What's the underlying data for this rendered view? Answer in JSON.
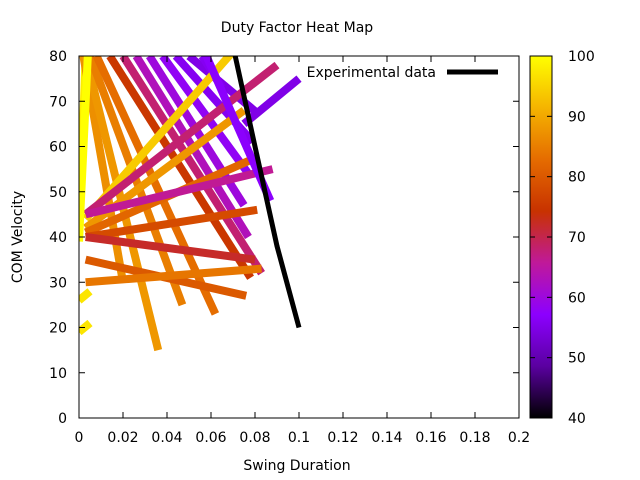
{
  "chart_data": {
    "type": "heatmap",
    "title": "Duty Factor Heat Map",
    "xlabel": "Swing Duration",
    "ylabel": "COM Velocity",
    "xlim": [
      0,
      0.2
    ],
    "ylim": [
      0,
      80
    ],
    "xticks": [
      0,
      0.02,
      0.04,
      0.06,
      0.08,
      0.1,
      0.12,
      0.14,
      0.16,
      0.18,
      0.2
    ],
    "xtick_labels": [
      "0",
      "0.02",
      "0.04",
      "0.06",
      "0.08",
      "0.1",
      "0.12",
      "0.14",
      "0.16",
      "0.18",
      "0.2"
    ],
    "yticks": [
      0,
      10,
      20,
      30,
      40,
      50,
      60,
      70,
      80
    ],
    "ytick_labels": [
      "0",
      "10",
      "20",
      "30",
      "40",
      "50",
      "60",
      "70",
      "80"
    ],
    "colorbar": {
      "range": [
        40,
        100
      ],
      "ticks": [
        40,
        50,
        60,
        70,
        80,
        90,
        100
      ],
      "tick_labels": [
        "40",
        "50",
        "60",
        "70",
        "80",
        "90",
        "100"
      ],
      "palette": [
        "#000000",
        "#5a00a0",
        "#8c00ff",
        "#c0199a",
        "#c83200",
        "#e56c00",
        "#f5b400",
        "#ffff00"
      ]
    },
    "legend": {
      "position": "top-right",
      "entries": [
        "Experimental data"
      ]
    },
    "series": [
      {
        "name": "Experimental data",
        "type": "line",
        "color": "#000000",
        "x": [
          0.071,
          0.08,
          0.09,
          0.1
        ],
        "y": [
          80,
          60,
          38,
          20
        ]
      }
    ],
    "heatmap_bands": [
      {
        "x": [
          0,
          0.003
        ],
        "y": [
          40,
          80
        ],
        "value": 98
      },
      {
        "x": [
          0.002,
          0.02
        ],
        "y": [
          80,
          30
        ],
        "value": 87
      },
      {
        "x": [
          0.003,
          0.036
        ],
        "y": [
          80,
          15
        ],
        "value": 88
      },
      {
        "x": [
          0.005,
          0.047
        ],
        "y": [
          80,
          25
        ],
        "value": 85
      },
      {
        "x": [
          0.008,
          0.062
        ],
        "y": [
          80,
          23
        ],
        "value": 83
      },
      {
        "x": [
          0.014,
          0.078
        ],
        "y": [
          80,
          31
        ],
        "value": 75
      },
      {
        "x": [
          0.02,
          0.083
        ],
        "y": [
          80,
          32
        ],
        "value": 68
      },
      {
        "x": [
          0.026,
          0.077
        ],
        "y": [
          80,
          40
        ],
        "value": 63
      },
      {
        "x": [
          0.032,
          0.075
        ],
        "y": [
          80,
          47
        ],
        "value": 60
      },
      {
        "x": [
          0.038,
          0.077
        ],
        "y": [
          80,
          54
        ],
        "value": 58
      },
      {
        "x": [
          0.044,
          0.079
        ],
        "y": [
          80,
          61
        ],
        "value": 56
      },
      {
        "x": [
          0.05,
          0.082
        ],
        "y": [
          80,
          67
        ],
        "value": 55
      },
      {
        "x": [
          0.056,
          0.065
        ],
        "y": [
          80,
          73
        ],
        "value": 56
      },
      {
        "x": [
          0.003,
          0.07
        ],
        "y": [
          44,
          81
        ],
        "value": 94
      },
      {
        "x": [
          0.003,
          0.075
        ],
        "y": [
          42,
          68
        ],
        "value": 88
      },
      {
        "x": [
          0.003,
          0.078
        ],
        "y": [
          41,
          57
        ],
        "value": 82
      },
      {
        "x": [
          0.003,
          0.081
        ],
        "y": [
          40,
          46
        ],
        "value": 78
      },
      {
        "x": [
          0.003,
          0.08
        ],
        "y": [
          40,
          35
        ],
        "value": 72
      },
      {
        "x": [
          0.003,
          0.076
        ],
        "y": [
          35,
          27
        ],
        "value": 80
      },
      {
        "x": [
          0.003,
          0.083
        ],
        "y": [
          30,
          33
        ],
        "value": 84
      },
      {
        "x": [
          0.003,
          0.09
        ],
        "y": [
          45,
          78
        ],
        "value": 68
      },
      {
        "x": [
          0.003,
          0.088
        ],
        "y": [
          45,
          55
        ],
        "value": 66
      },
      {
        "x": [
          0.075,
          0.1
        ],
        "y": [
          65,
          75
        ],
        "value": 55
      },
      {
        "x": [
          0,
          0.004
        ],
        "y": [
          39,
          80
        ],
        "value": 100
      },
      {
        "x": [
          0,
          0.005
        ],
        "y": [
          19,
          21
        ],
        "value": 97
      },
      {
        "x": [
          0,
          0.005
        ],
        "y": [
          26,
          28
        ],
        "value": 97
      },
      {
        "x": [
          0.057,
          0.087
        ],
        "y": [
          81,
          48
        ],
        "value": 57
      }
    ]
  }
}
